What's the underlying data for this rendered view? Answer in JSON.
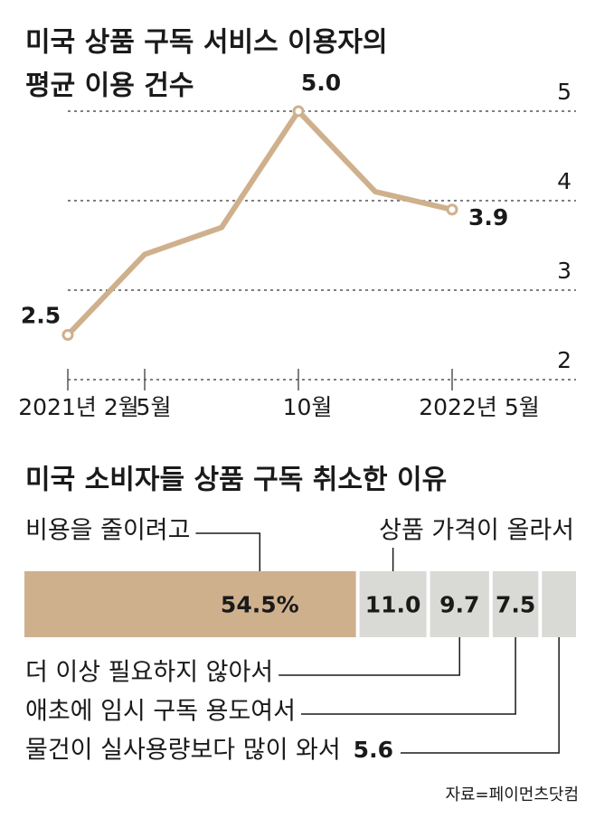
{
  "chart_data": [
    {
      "type": "line",
      "title": [
        "미국 상품 구독 서비스 이용자의",
        "평균 이용 건수"
      ],
      "categories": [
        "2021년 2월",
        "5월",
        null,
        "10월",
        null,
        "2022년 5월"
      ],
      "values": [
        2.5,
        3.4,
        3.7,
        5.0,
        4.1,
        3.9
      ],
      "value_labels": [
        "2.5",
        null,
        null,
        "5.0",
        null,
        "3.9"
      ],
      "color": "#cfb08d",
      "ylim": [
        2,
        5
      ],
      "yticks": [
        2,
        3,
        4,
        5
      ],
      "grid": true
    },
    {
      "type": "stacked-bar",
      "title": "미국 소비자들 상품 구독 취소한 이유",
      "categories": [
        "비용을 줄이려고",
        "상품 가격이 올라서",
        "더 이상 필요하지 않아서",
        "애초에 임시 구독 용도여서",
        "물건이 실사용량보다 많이 와서"
      ],
      "values": [
        54.5,
        11.0,
        9.7,
        7.5,
        5.6
      ],
      "value_labels": [
        "54.5%",
        "11.0",
        "9.7",
        "7.5",
        "5.6"
      ],
      "colors": [
        "#cfb08d",
        "#d9d9d6",
        "#d9d9d6",
        "#d9d9d6",
        "#d9d9d6"
      ]
    }
  ],
  "source": "자료=페이먼츠닷컴"
}
